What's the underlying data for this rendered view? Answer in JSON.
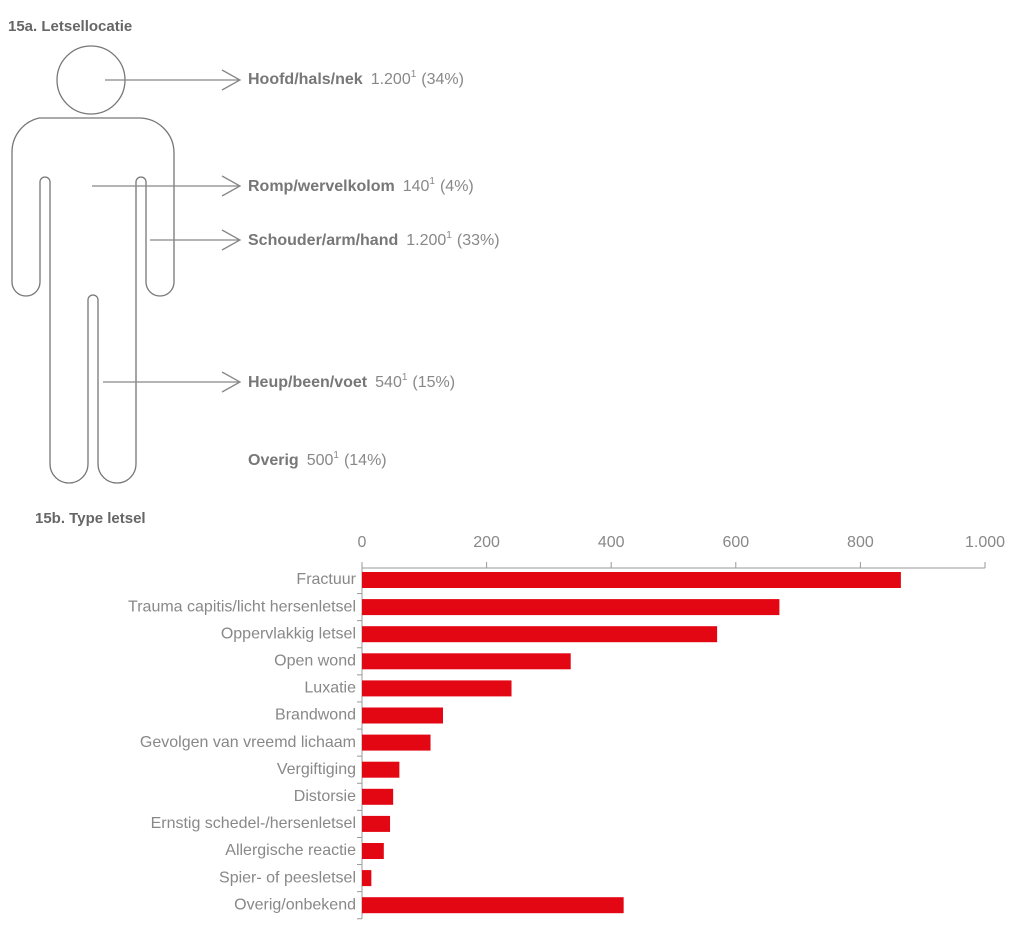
{
  "figure": {
    "heading": "15a. Letsellocatie",
    "locations": [
      {
        "name": "Hoofd/hals/nek",
        "value": "1.200",
        "note": "1",
        "share": "(34%)"
      },
      {
        "name": "Romp/wervelkolom",
        "value": "140",
        "note": "1",
        "share": "(4%)"
      },
      {
        "name": "Schouder/arm/hand",
        "value": "1.200",
        "note": "1",
        "share": "(33%)"
      },
      {
        "name": "Heup/been/voet",
        "value": "540",
        "note": "1",
        "share": "(15%)"
      },
      {
        "name": "Overig",
        "value": "500",
        "note": "1",
        "share": "(14%)"
      }
    ]
  },
  "chart_data": {
    "type": "hbar",
    "title": "15b. Type letsel",
    "color": "#e30613",
    "categories": [
      "Fractuur",
      "Trauma capitis/licht hersenletsel",
      "Oppervlakkig letsel",
      "Open wond",
      "Luxatie",
      "Brandwond",
      "Gevolgen van vreemd lichaam",
      "Vergiftiging",
      "Distorsie",
      "Ernstig schedel-/hersenletsel",
      "Allergische reactie",
      "Spier- of peesletsel",
      "Overig/onbekend"
    ],
    "values": [
      865,
      670,
      570,
      335,
      240,
      130,
      110,
      60,
      50,
      45,
      35,
      15,
      420
    ],
    "xlim": [
      0,
      1000
    ],
    "xticks": [
      0,
      200,
      400,
      600,
      800,
      {
        "value": 1000,
        "label": "1.000"
      }
    ]
  }
}
